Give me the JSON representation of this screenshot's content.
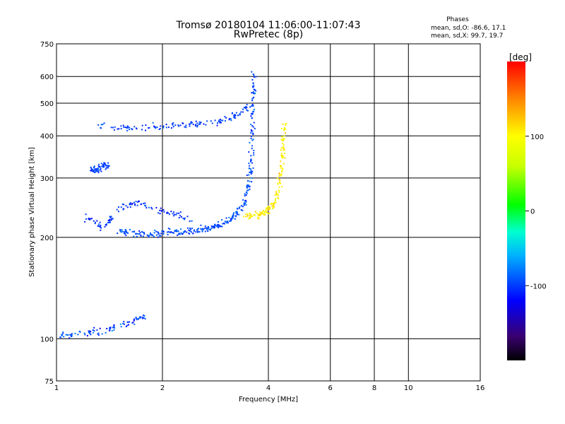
{
  "chart_data": {
    "type": "scatter",
    "title_line1": "Tromsø 20180104 11:06:00-11:07:43",
    "title_line2": "RwPretec (8p)",
    "phases": {
      "heading": "Phases",
      "line_o": "mean, sd,O: -86.6, 17.1",
      "line_x": "mean, sd,X:  99.7, 19.7"
    },
    "xlabel": "Frequency [MHz]",
    "ylabel": "Stationary phase Virtual Height [km]",
    "x_scale": "log",
    "y_scale": "log",
    "xlim": [
      1,
      16
    ],
    "ylim": [
      75,
      750
    ],
    "x_ticks": [
      1,
      2,
      4,
      6,
      8,
      10,
      16
    ],
    "x_tick_labels": [
      "1",
      "2",
      "4",
      "6",
      "8",
      "10",
      "16"
    ],
    "y_ticks": [
      75,
      100,
      200,
      300,
      400,
      500,
      600,
      750
    ],
    "y_tick_labels": [
      "75",
      "100",
      "200",
      "300",
      "400",
      "500",
      "600",
      "750"
    ],
    "grid": true,
    "colorbar": {
      "label": "[deg]",
      "range": [
        -200,
        200
      ],
      "ticks": [
        100,
        0,
        -100
      ],
      "tick_labels": [
        "100",
        "0",
        "-100"
      ]
    },
    "traces": [
      {
        "name_hint": "o-mode F-layer trace",
        "phase_mean": -95,
        "phase_sd": 15,
        "points": [
          [
            1.5,
            210
          ],
          [
            1.6,
            207
          ],
          [
            1.8,
            205
          ],
          [
            2.0,
            207
          ],
          [
            2.2,
            208
          ],
          [
            2.4,
            210
          ],
          [
            2.6,
            212
          ],
          [
            2.8,
            216
          ],
          [
            3.0,
            222
          ],
          [
            3.2,
            232
          ],
          [
            3.4,
            252
          ],
          [
            3.5,
            290
          ],
          [
            3.55,
            340
          ],
          [
            3.58,
            420
          ],
          [
            3.6,
            520
          ],
          [
            3.62,
            620
          ]
        ]
      },
      {
        "name_hint": "x-mode F-layer trace",
        "phase_mean": 105,
        "phase_sd": 20,
        "points": [
          [
            3.4,
            232
          ],
          [
            3.7,
            233
          ],
          [
            3.9,
            238
          ],
          [
            4.1,
            248
          ],
          [
            4.25,
            275
          ],
          [
            4.35,
            320
          ],
          [
            4.4,
            380
          ],
          [
            4.42,
            440
          ]
        ]
      },
      {
        "name_hint": "upper spread echoes",
        "phase_mean": -100,
        "phase_sd": 15,
        "points": [
          [
            1.3,
            430
          ],
          [
            1.6,
            425
          ],
          [
            2.0,
            428
          ],
          [
            2.4,
            432
          ],
          [
            2.8,
            440
          ],
          [
            3.2,
            460
          ],
          [
            3.5,
            490
          ]
        ]
      },
      {
        "name_hint": "low-height echoes",
        "phase_mean": -95,
        "phase_sd": 25,
        "points": [
          [
            1.0,
            102
          ],
          [
            1.2,
            104
          ],
          [
            1.4,
            107
          ],
          [
            1.6,
            112
          ],
          [
            1.8,
            118
          ]
        ]
      },
      {
        "name_hint": "lower spread patch",
        "phase_mean": -105,
        "phase_sd": 15,
        "points": [
          [
            1.2,
            230
          ],
          [
            1.35,
            215
          ],
          [
            1.5,
            245
          ],
          [
            1.7,
            255
          ],
          [
            2.0,
            240
          ],
          [
            2.5,
            225
          ]
        ]
      },
      {
        "name_hint": "patch near 1.3 MHz",
        "phase_mean": -100,
        "phase_sd": 10,
        "points": [
          [
            1.25,
            320
          ],
          [
            1.3,
            315
          ],
          [
            1.35,
            330
          ],
          [
            1.4,
            325
          ]
        ]
      }
    ]
  }
}
